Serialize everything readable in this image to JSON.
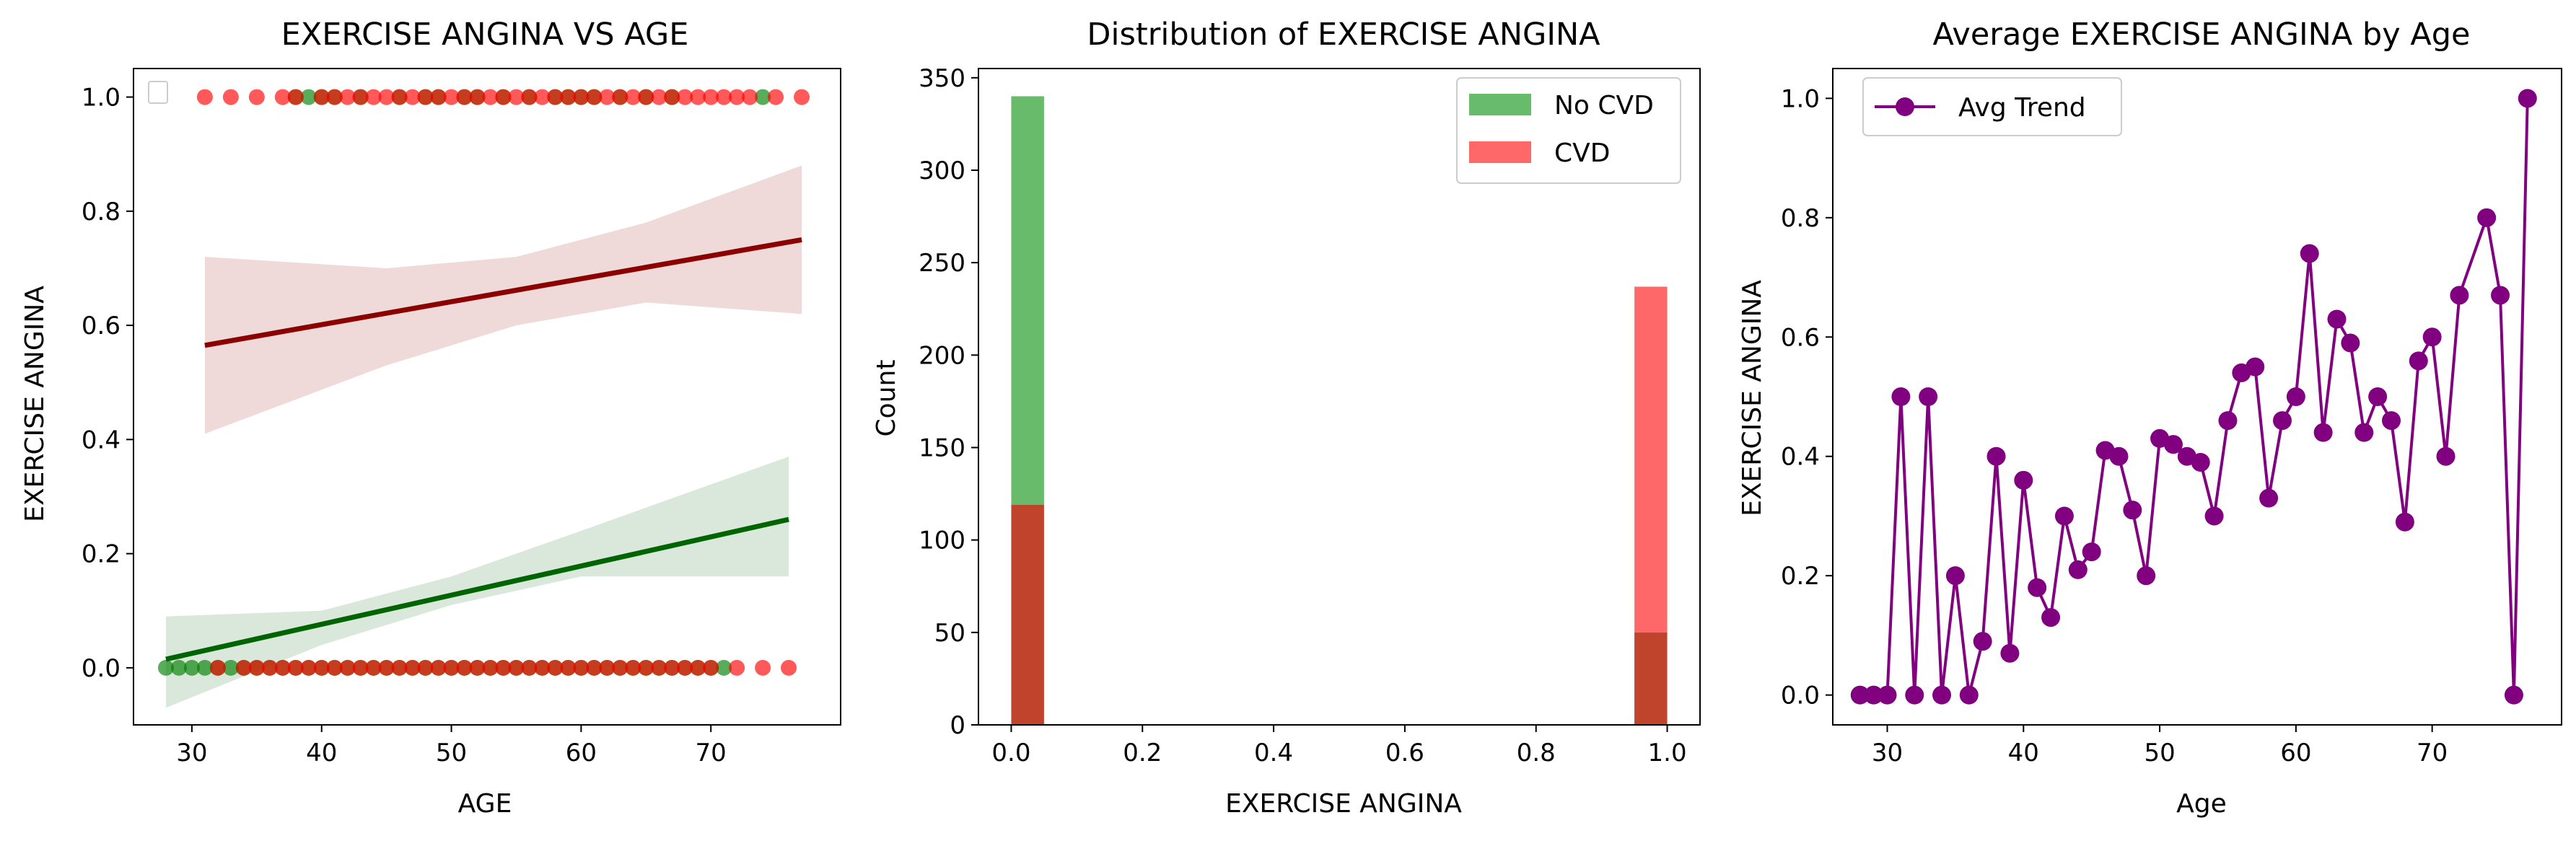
{
  "figure": {
    "background": "#ffffff"
  },
  "chart_data": [
    {
      "type": "scatter",
      "title": "EXERCISE ANGINA VS AGE",
      "xlabel": "AGE",
      "ylabel": "EXERCISE ANGINA",
      "xlim": [
        25.5,
        80
      ],
      "ylim": [
        -0.1,
        1.05
      ],
      "xticks": [
        "30",
        "40",
        "50",
        "60",
        "70"
      ],
      "yticks": [
        "0.0",
        "0.2",
        "0.4",
        "0.6",
        "0.8",
        "1.0"
      ],
      "grid": false,
      "legend": {
        "position": "top-left",
        "entries": []
      },
      "colors": {
        "no_cvd": "#008000",
        "cvd": "#ff0000",
        "no_cvd_fit": "#006400",
        "cvd_fit": "#8b0000",
        "no_cvd_band": "#2e7d32",
        "cvd_band": "#a52a2a"
      },
      "series": [
        {
          "group": "no_cvd",
          "y": 1,
          "x": [
            38,
            39,
            40,
            41,
            43,
            46,
            48,
            49,
            51,
            52,
            54,
            56,
            58,
            59,
            60,
            61,
            63,
            65,
            67,
            74
          ]
        },
        {
          "group": "no_cvd",
          "y": 0,
          "x": [
            28,
            29,
            30,
            31,
            32,
            33,
            34,
            35,
            36,
            37,
            38,
            39,
            40,
            41,
            42,
            43,
            44,
            45,
            46,
            47,
            48,
            49,
            50,
            51,
            52,
            53,
            54,
            55,
            56,
            57,
            58,
            59,
            60,
            61,
            62,
            63,
            64,
            65,
            66,
            67,
            68,
            69,
            70,
            71
          ]
        },
        {
          "group": "cvd",
          "y": 1,
          "x": [
            31,
            33,
            35,
            37,
            38,
            40,
            41,
            42,
            43,
            44,
            45,
            46,
            47,
            48,
            49,
            50,
            51,
            52,
            53,
            54,
            55,
            56,
            57,
            58,
            59,
            60,
            61,
            62,
            63,
            64,
            65,
            66,
            67,
            68,
            69,
            70,
            71,
            72,
            73,
            75,
            77
          ]
        },
        {
          "group": "cvd",
          "y": 0,
          "x": [
            32,
            34,
            35,
            36,
            37,
            38,
            39,
            40,
            41,
            42,
            43,
            44,
            45,
            46,
            47,
            48,
            49,
            50,
            51,
            52,
            53,
            54,
            55,
            56,
            57,
            58,
            59,
            60,
            61,
            62,
            63,
            64,
            65,
            66,
            67,
            68,
            69,
            70,
            72,
            74,
            76
          ]
        }
      ],
      "fits": [
        {
          "group": "cvd",
          "x": [
            31,
            77
          ],
          "y": [
            0.565,
            0.75
          ],
          "band": {
            "x": [
              31,
              45,
              55,
              65,
              77
            ],
            "lower": [
              0.41,
              0.53,
              0.6,
              0.64,
              0.62
            ],
            "upper": [
              0.72,
              0.7,
              0.72,
              0.78,
              0.88
            ]
          }
        },
        {
          "group": "no_cvd",
          "x": [
            28,
            76
          ],
          "y": [
            0.015,
            0.26
          ],
          "band": {
            "x": [
              28,
              40,
              50,
              60,
              76
            ],
            "lower": [
              -0.07,
              0.04,
              0.11,
              0.16,
              0.16
            ],
            "upper": [
              0.09,
              0.1,
              0.16,
              0.24,
              0.37
            ]
          }
        }
      ]
    },
    {
      "type": "bar",
      "title": "Distribution of EXERCISE ANGINA",
      "xlabel": "EXERCISE ANGINA",
      "ylabel": "Count",
      "xlim": [
        -0.05,
        1.05
      ],
      "ylim": [
        0,
        355
      ],
      "xticks": [
        "0.0",
        "0.2",
        "0.4",
        "0.6",
        "0.8",
        "1.0"
      ],
      "yticks": [
        "0",
        "50",
        "100",
        "150",
        "200",
        "250",
        "300",
        "350"
      ],
      "grid": false,
      "legend": {
        "position": "top-right"
      },
      "series": [
        {
          "name": "No CVD",
          "color": "#4caf50",
          "bins": [
            {
              "x0": 0.0,
              "x1": 0.05,
              "value": 340
            },
            {
              "x0": 0.95,
              "x1": 1.0,
              "value": 50
            }
          ]
        },
        {
          "name": "CVD",
          "color": "#ff4d4d",
          "bins": [
            {
              "x0": 0.0,
              "x1": 0.05,
              "value": 119
            },
            {
              "x0": 0.95,
              "x1": 1.0,
              "value": 237
            }
          ]
        }
      ],
      "overlap_color": "#c0432b"
    },
    {
      "type": "line",
      "title": "Average EXERCISE ANGINA by Age",
      "xlabel": "Age",
      "ylabel": "EXERCISE ANGINA",
      "xlim": [
        26,
        79.5
      ],
      "ylim": [
        -0.05,
        1.05
      ],
      "xticks": [
        "30",
        "40",
        "50",
        "60",
        "70"
      ],
      "yticks": [
        "0.0",
        "0.2",
        "0.4",
        "0.6",
        "0.8",
        "1.0"
      ],
      "grid": false,
      "legend": {
        "position": "top-left"
      },
      "series": [
        {
          "name": "Avg Trend",
          "color": "#800080",
          "x": [
            28,
            29,
            30,
            31,
            32,
            33,
            34,
            35,
            36,
            37,
            38,
            39,
            40,
            41,
            42,
            43,
            44,
            45,
            46,
            47,
            48,
            49,
            50,
            51,
            52,
            53,
            54,
            55,
            56,
            57,
            58,
            59,
            60,
            61,
            62,
            63,
            64,
            65,
            66,
            67,
            68,
            69,
            70,
            71,
            72,
            74,
            75,
            76,
            77
          ],
          "y": [
            0,
            0,
            0,
            0.5,
            0,
            0.5,
            0,
            0.2,
            0,
            0.09,
            0.4,
            0.07,
            0.36,
            0.18,
            0.13,
            0.3,
            0.21,
            0.24,
            0.41,
            0.4,
            0.31,
            0.2,
            0.43,
            0.42,
            0.4,
            0.39,
            0.3,
            0.46,
            0.54,
            0.55,
            0.33,
            0.46,
            0.5,
            0.74,
            0.44,
            0.63,
            0.59,
            0.44,
            0.5,
            0.46,
            0.29,
            0.56,
            0.6,
            0.4,
            0.67,
            0.8,
            0.67,
            0,
            1.0
          ]
        }
      ]
    }
  ]
}
